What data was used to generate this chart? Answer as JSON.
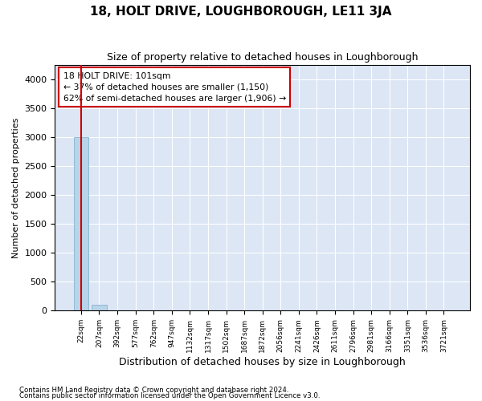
{
  "title": "18, HOLT DRIVE, LOUGHBOROUGH, LE11 3JA",
  "subtitle": "Size of property relative to detached houses in Loughborough",
  "xlabel": "Distribution of detached houses by size in Loughborough",
  "ylabel": "Number of detached properties",
  "footnote1": "Contains HM Land Registry data © Crown copyright and database right 2024.",
  "footnote2": "Contains public sector information licensed under the Open Government Licence v3.0.",
  "annotation_line1": "18 HOLT DRIVE: 101sqm",
  "annotation_line2": "← 37% of detached houses are smaller (1,150)",
  "annotation_line3": "62% of semi-detached houses are larger (1,906) →",
  "bar_color": "#b8d4e8",
  "bar_edge_color": "#7aaac8",
  "marker_color": "#cc0000",
  "background_color": "#dce6f5",
  "bin_labels": [
    "22sqm",
    "207sqm",
    "392sqm",
    "577sqm",
    "762sqm",
    "947sqm",
    "1132sqm",
    "1317sqm",
    "1502sqm",
    "1687sqm",
    "1872sqm",
    "2056sqm",
    "2241sqm",
    "2426sqm",
    "2611sqm",
    "2796sqm",
    "2981sqm",
    "3166sqm",
    "3351sqm",
    "3536sqm",
    "3721sqm"
  ],
  "bar_heights": [
    3000,
    100,
    2,
    1,
    1,
    1,
    1,
    1,
    1,
    1,
    1,
    1,
    1,
    1,
    1,
    1,
    1,
    1,
    1,
    1,
    0
  ],
  "property_bin_index": 0,
  "ylim_max": 4250,
  "yticks": [
    0,
    500,
    1000,
    1500,
    2000,
    2500,
    3000,
    3500,
    4000
  ]
}
